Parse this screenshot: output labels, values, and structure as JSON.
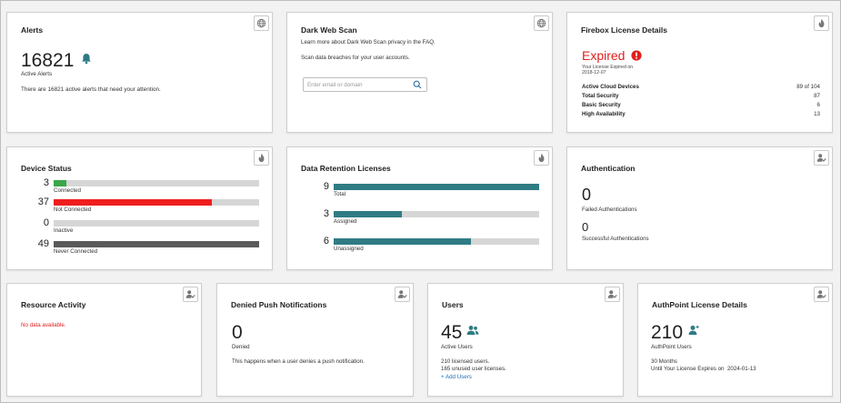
{
  "colors": {
    "connected": "#3aa748",
    "not_connected": "#ef1e1e",
    "inactive": "#cfcfcf",
    "never_connected": "#5a5a5a",
    "retention": "#2f7b84",
    "expired": "#e02020",
    "alert_bell": "#2f7b84",
    "users_icon": "#2f7b84"
  },
  "alerts": {
    "title": "Alerts",
    "count": "16821",
    "count_label": "Active Alerts",
    "message": "There are 16821 active alerts that need your attention.",
    "icons": {
      "corner": "globe-icon",
      "count": "bell-icon"
    }
  },
  "dark_web_scan": {
    "title": "Dark Web Scan",
    "faq_text": "Learn more about Dark Web Scan privacy in the FAQ.",
    "description": "Scan data breaches for your user accounts.",
    "search_placeholder": "Enter email or domain",
    "search_value": "",
    "icons": {
      "corner": "globe-icon",
      "search": "search-icon"
    }
  },
  "firebox_license": {
    "title": "Firebox License Details",
    "status": "Expired",
    "expired_note": "Your License Expired on",
    "expired_date": "2018-12-07",
    "rows": [
      {
        "label": "Active Cloud Devices",
        "value": "89 of 104"
      },
      {
        "label": "Total Security",
        "value": "87"
      },
      {
        "label": "Basic Security",
        "value": "6"
      },
      {
        "label": "High Availability",
        "value": "13"
      }
    ],
    "icons": {
      "corner": "flame-icon",
      "status": "alert-icon"
    }
  },
  "device_status": {
    "title": "Device Status",
    "rows": [
      {
        "count": "3",
        "label": "Connected",
        "fraction": 0.06
      },
      {
        "count": "37",
        "label": "Not Connected",
        "fraction": 0.77
      },
      {
        "count": "0",
        "label": "Inactive",
        "fraction": 0.0
      },
      {
        "count": "49",
        "label": "Never Connected",
        "fraction": 1.0
      }
    ],
    "icons": {
      "corner": "flame-icon"
    }
  },
  "data_retention": {
    "title": "Data Retention Licenses",
    "rows": [
      {
        "count": "9",
        "label": "Total",
        "fraction": 1.0
      },
      {
        "count": "3",
        "label": "Assigned",
        "fraction": 0.33
      },
      {
        "count": "6",
        "label": "Unassigned",
        "fraction": 0.67
      }
    ],
    "icons": {
      "corner": "flame-icon"
    }
  },
  "authentication": {
    "title": "Authentication",
    "failed_count": "0",
    "failed_label": "Failed Authentications",
    "success_count": "0",
    "success_label": "Successful Authentications",
    "icons": {
      "corner": "user-check-icon"
    }
  },
  "resource_activity": {
    "title": "Resource Activity",
    "message": "No data available.",
    "icons": {
      "corner": "user-check-icon"
    }
  },
  "denied_push": {
    "title": "Denied Push Notifications",
    "count": "0",
    "count_label": "Denied",
    "message": "This happens when a user denies a push notification.",
    "icons": {
      "corner": "user-check-icon"
    }
  },
  "users": {
    "title": "Users",
    "count": "45",
    "count_label": "Active Users",
    "licensed": "210 licensed users.",
    "unused": "165 unused user licenses.",
    "add_link": "+ Add Users",
    "icons": {
      "corner": "user-check-icon",
      "count": "users-icon"
    }
  },
  "authpoint_license": {
    "title": "AuthPoint License Details",
    "count": "210",
    "count_label": "AuthPoint Users",
    "months": "30 Months",
    "expires_label": "Until Your License Expires on",
    "expires_date": "2024-01-13",
    "icons": {
      "corner": "user-check-icon",
      "count": "user-icon"
    }
  }
}
